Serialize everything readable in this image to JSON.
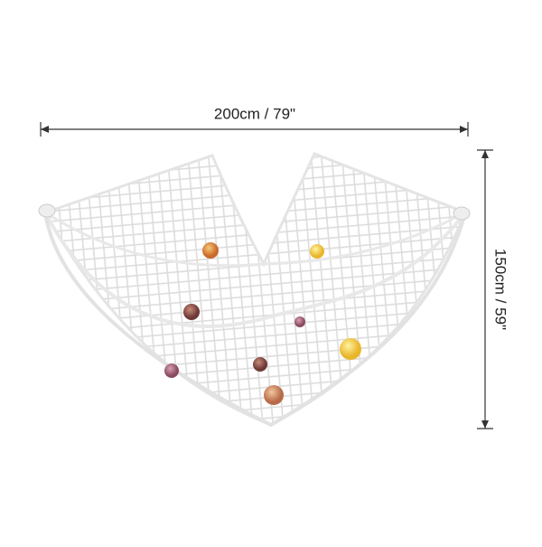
{
  "dimensions": {
    "width_label": "200cm / 79\"",
    "height_label": "150cm / 59\""
  }
}
